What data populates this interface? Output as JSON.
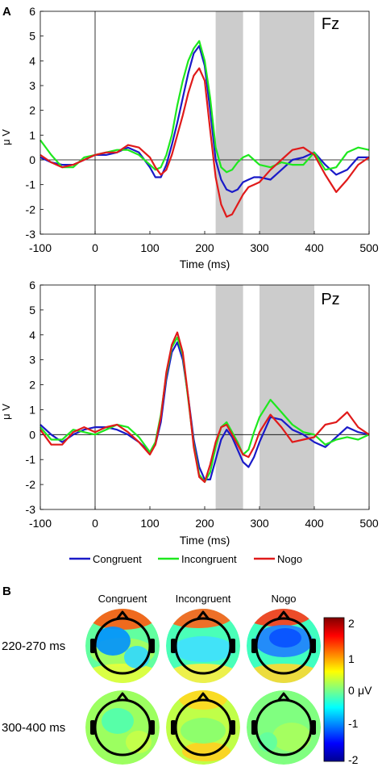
{
  "panels": {
    "a": "A",
    "b": "B"
  },
  "colors": {
    "congruent": "#1a1ac8",
    "incongruent": "#1ee81e",
    "nogo": "#e01a1a",
    "shade": "#cccccc"
  },
  "chart_data": [
    {
      "type": "line",
      "title": "Fz",
      "xlabel": "Time (ms)",
      "ylabel": "μ V",
      "xlim": [
        -100,
        500
      ],
      "ylim": [
        -3,
        6
      ],
      "xticks": [
        "-100",
        "0",
        "100",
        "200",
        "300",
        "400",
        "500"
      ],
      "yticks": [
        "-3",
        "-2",
        "-1",
        "0",
        "1",
        "2",
        "3",
        "4",
        "5",
        "6"
      ],
      "shaded_windows": [
        [
          220,
          270
        ],
        [
          300,
          400
        ]
      ],
      "x": [
        -100,
        -80,
        -60,
        -40,
        -20,
        0,
        20,
        40,
        60,
        80,
        100,
        110,
        120,
        130,
        140,
        150,
        160,
        170,
        180,
        190,
        200,
        210,
        220,
        230,
        240,
        250,
        260,
        270,
        280,
        290,
        300,
        320,
        340,
        360,
        380,
        400,
        420,
        440,
        460,
        480,
        500
      ],
      "series": [
        {
          "name": "Congruent",
          "color": "#1a1ac8",
          "values": [
            0.1,
            -0.1,
            -0.2,
            -0.2,
            0.0,
            0.2,
            0.2,
            0.3,
            0.5,
            0.3,
            -0.3,
            -0.7,
            -0.7,
            -0.2,
            0.6,
            1.5,
            2.5,
            3.5,
            4.3,
            4.6,
            3.8,
            2.0,
            0.0,
            -0.8,
            -1.2,
            -1.3,
            -1.2,
            -0.9,
            -0.8,
            -0.7,
            -0.7,
            -0.8,
            -0.4,
            0.0,
            0.1,
            0.3,
            -0.2,
            -0.6,
            -0.4,
            0.1,
            0.1
          ]
        },
        {
          "name": "Incongruent",
          "color": "#1ee81e",
          "values": [
            0.8,
            0.2,
            -0.3,
            -0.3,
            0.1,
            0.2,
            0.3,
            0.4,
            0.4,
            0.2,
            -0.2,
            -0.4,
            -0.3,
            0.2,
            1.0,
            2.2,
            3.2,
            4.0,
            4.5,
            4.8,
            4.0,
            2.5,
            0.5,
            -0.3,
            -0.5,
            -0.4,
            -0.1,
            0.1,
            0.2,
            0.0,
            -0.2,
            -0.3,
            -0.1,
            -0.2,
            -0.2,
            0.3,
            -0.4,
            -0.3,
            0.3,
            0.5,
            0.4
          ]
        },
        {
          "name": "Nogo",
          "color": "#e01a1a",
          "values": [
            0.2,
            -0.1,
            -0.3,
            -0.2,
            0.0,
            0.2,
            0.3,
            0.3,
            0.6,
            0.5,
            0.1,
            -0.3,
            -0.6,
            -0.4,
            0.2,
            1.0,
            1.8,
            2.7,
            3.4,
            3.7,
            3.2,
            1.2,
            -0.7,
            -1.8,
            -2.3,
            -2.2,
            -1.8,
            -1.4,
            -1.1,
            -1.0,
            -0.9,
            -0.4,
            0.0,
            0.4,
            0.5,
            0.2,
            -0.6,
            -1.3,
            -0.8,
            -0.2,
            0.1
          ]
        }
      ]
    },
    {
      "type": "line",
      "title": "Pz",
      "xlabel": "Time (ms)",
      "ylabel": "μ V",
      "xlim": [
        -100,
        500
      ],
      "ylim": [
        -3,
        6
      ],
      "xticks": [
        "-100",
        "0",
        "100",
        "200",
        "300",
        "400",
        "500"
      ],
      "yticks": [
        "-3",
        "-2",
        "-1",
        "0",
        "1",
        "2",
        "3",
        "4",
        "5",
        "6"
      ],
      "shaded_windows": [
        [
          220,
          270
        ],
        [
          300,
          400
        ]
      ],
      "x": [
        -100,
        -80,
        -60,
        -40,
        -20,
        0,
        20,
        40,
        60,
        80,
        100,
        110,
        120,
        130,
        140,
        150,
        160,
        170,
        180,
        190,
        200,
        210,
        220,
        230,
        240,
        250,
        260,
        270,
        280,
        290,
        300,
        320,
        340,
        360,
        380,
        400,
        420,
        440,
        460,
        480,
        500
      ],
      "series": [
        {
          "name": "Congruent",
          "color": "#1a1ac8",
          "values": [
            0.4,
            0.0,
            -0.3,
            0.0,
            0.2,
            0.3,
            0.3,
            0.2,
            0.0,
            -0.3,
            -0.7,
            -0.4,
            0.5,
            2.2,
            3.3,
            3.7,
            3.0,
            1.5,
            -0.2,
            -1.3,
            -1.8,
            -1.8,
            -1.0,
            -0.2,
            0.2,
            -0.1,
            -0.6,
            -1.1,
            -1.3,
            -0.9,
            -0.3,
            0.7,
            0.6,
            0.2,
            0.0,
            -0.3,
            -0.5,
            -0.1,
            0.3,
            0.1,
            0.0
          ]
        },
        {
          "name": "Incongruent",
          "color": "#1ee81e",
          "values": [
            0.3,
            -0.2,
            -0.2,
            0.2,
            0.1,
            0.0,
            0.2,
            0.4,
            0.3,
            -0.1,
            -0.7,
            -0.3,
            0.8,
            2.4,
            3.5,
            3.9,
            3.2,
            1.4,
            -0.4,
            -1.6,
            -1.9,
            -1.5,
            -0.5,
            0.3,
            0.5,
            0.1,
            -0.3,
            -0.8,
            -0.6,
            0.1,
            0.7,
            1.4,
            0.9,
            0.4,
            0.1,
            0.0,
            -0.4,
            -0.2,
            -0.1,
            -0.2,
            0.0
          ]
        },
        {
          "name": "Nogo",
          "color": "#e01a1a",
          "values": [
            0.2,
            -0.4,
            -0.4,
            0.1,
            0.3,
            0.1,
            0.3,
            0.4,
            0.1,
            -0.3,
            -0.8,
            -0.4,
            0.7,
            2.5,
            3.6,
            4.1,
            3.3,
            1.5,
            -0.5,
            -1.7,
            -1.9,
            -1.2,
            -0.3,
            0.3,
            0.4,
            0.0,
            -0.4,
            -0.8,
            -0.9,
            -0.5,
            0.1,
            0.8,
            0.3,
            -0.3,
            -0.2,
            -0.1,
            0.4,
            0.5,
            0.9,
            0.3,
            0.0
          ]
        }
      ]
    }
  ],
  "legend": {
    "items": [
      "Congruent",
      "Incongruent",
      "Nogo"
    ]
  },
  "topomaps": {
    "columns": [
      "Congruent",
      "Incongruent",
      "Nogo"
    ],
    "rows": [
      "220-270 ms",
      "300-400 ms"
    ],
    "colorbar": {
      "label": "μV",
      "range": [
        -2,
        2
      ],
      "ticks": [
        "2",
        "1",
        "0",
        "-1",
        "-2"
      ]
    }
  }
}
